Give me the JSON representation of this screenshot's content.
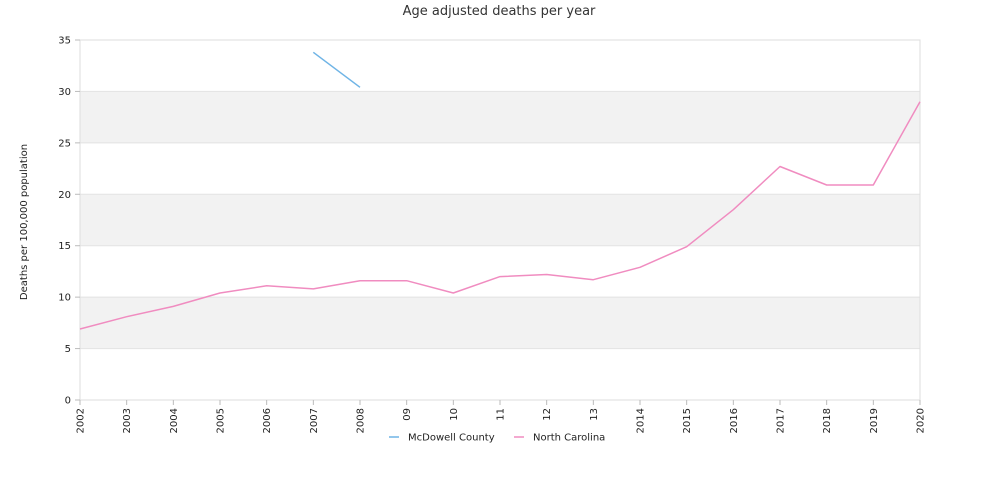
{
  "chart_data": {
    "type": "line",
    "title": "Age adjusted deaths per year",
    "xlabel": "",
    "ylabel": "Deaths per 100,000 population",
    "x": [
      "2002",
      "2003",
      "2004",
      "2005",
      "2006",
      "2007",
      "2008",
      "09",
      "10",
      "11",
      "12",
      "13",
      "2014",
      "2015",
      "2016",
      "2017",
      "2018",
      "2019",
      "2020"
    ],
    "ylim": [
      0,
      35
    ],
    "yticks": [
      0,
      5,
      10,
      15,
      20,
      25,
      30,
      35
    ],
    "grid": "alternating horizontal bands",
    "legend_position": "bottom",
    "series": [
      {
        "name": "McDowell County",
        "color": "#6fb4e6",
        "values": [
          null,
          null,
          null,
          null,
          null,
          33.8,
          30.4,
          null,
          null,
          null,
          null,
          null,
          null,
          null,
          null,
          null,
          null,
          null,
          null
        ]
      },
      {
        "name": "North Carolina",
        "color": "#f08cc0",
        "values": [
          6.9,
          8.1,
          9.1,
          10.4,
          11.1,
          10.8,
          11.6,
          11.6,
          10.4,
          12.0,
          12.2,
          11.7,
          12.9,
          14.9,
          18.5,
          22.7,
          20.9,
          20.9,
          29.0
        ]
      }
    ]
  }
}
